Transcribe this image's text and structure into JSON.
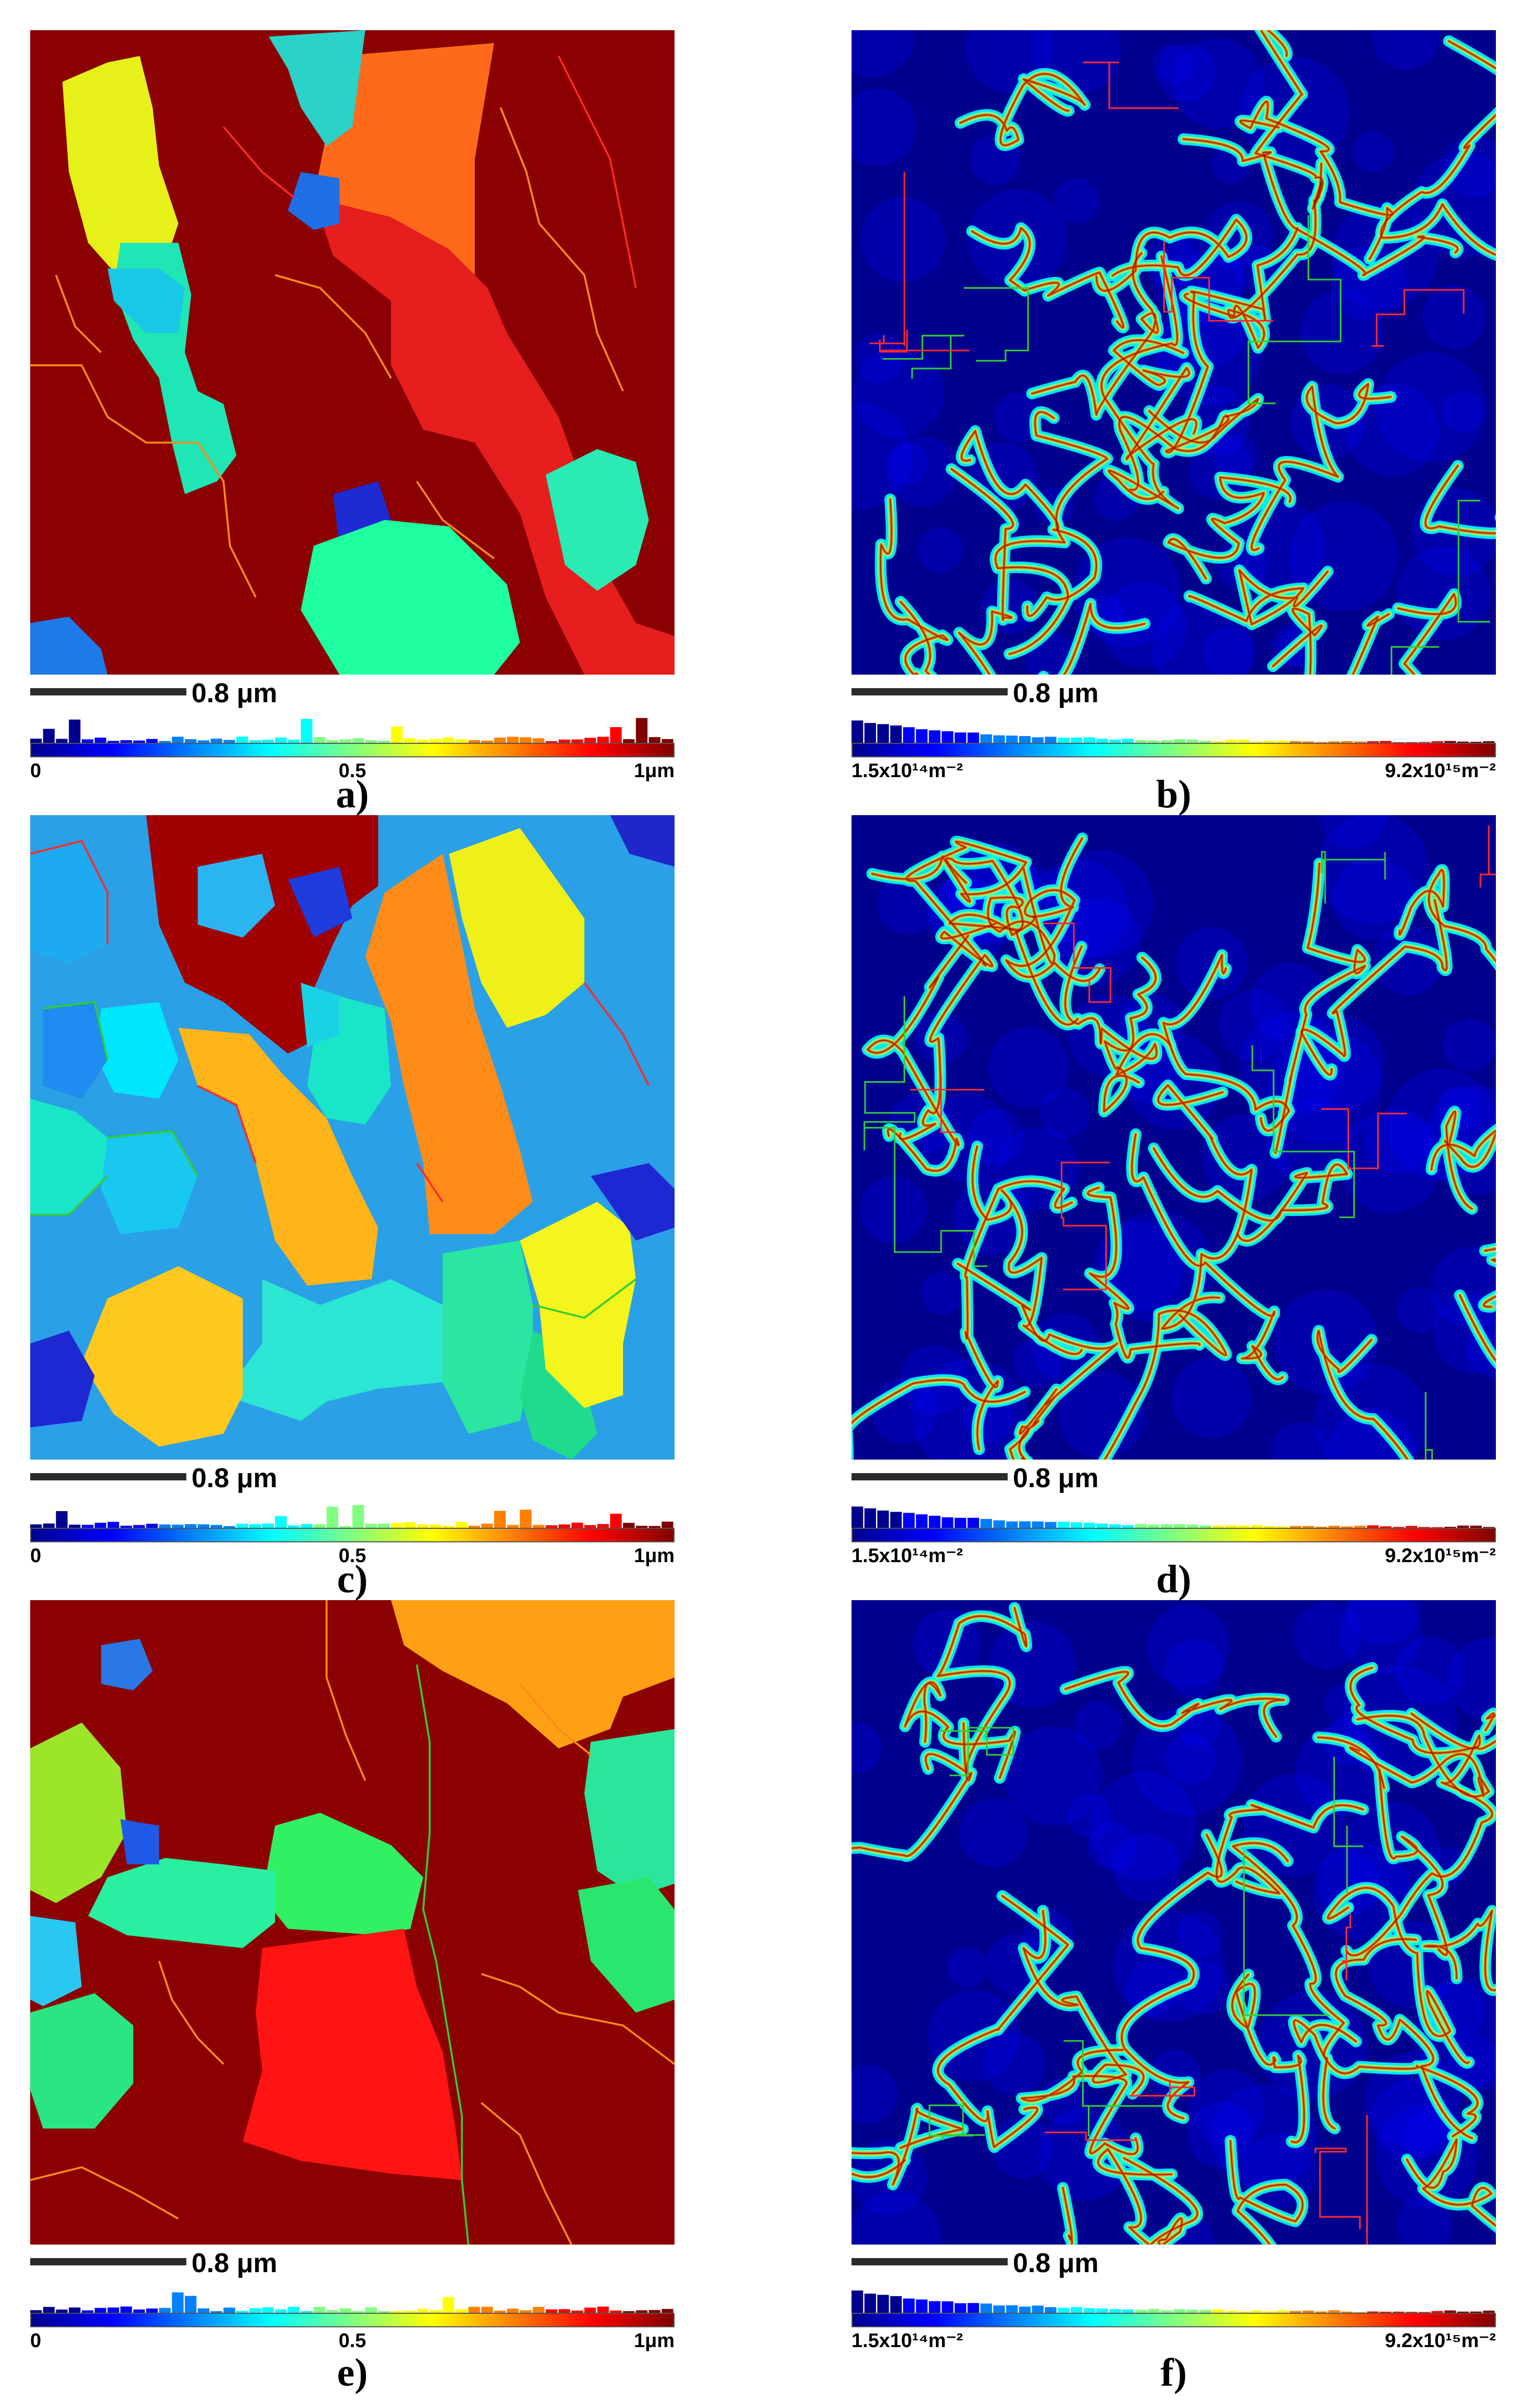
{
  "colors": {
    "jet_scale": [
      "#00008f",
      "#0000ff",
      "#0080ff",
      "#00ffff",
      "#80ff80",
      "#ffff00",
      "#ff8000",
      "#ff0000",
      "#800000"
    ],
    "scalebar": "#2b2b2b",
    "boundary_red": "#ff2a2a",
    "boundary_green": "#33cc33",
    "boundary_orange": "#ff8a1a"
  },
  "panels": [
    {
      "id": "a",
      "caption": "a)",
      "kind": "grain-size-map",
      "scalebar_label": "0.8 μm",
      "colorbar": {
        "min_label": "0",
        "mid_label": "0.5",
        "max_label": "1μm"
      },
      "background": "#8b0000",
      "grains": [
        {
          "color": "#e6f019"
        },
        {
          "color": "#1ee6b4"
        },
        {
          "color": "#ff6a1a"
        },
        {
          "color": "#19c8e6"
        },
        {
          "color": "#2ad2c8"
        },
        {
          "color": "#e61e1e"
        },
        {
          "color": "#1e6ee6"
        },
        {
          "color": "#1e2ad2"
        },
        {
          "color": "#1effa0"
        },
        {
          "color": "#2aebb4"
        },
        {
          "color": "#1e7ae6"
        }
      ]
    },
    {
      "id": "b",
      "caption": "b)",
      "kind": "dislocation-density-map",
      "scalebar_label": "0.8 μm",
      "colorbar": {
        "min_label": "1.5x10¹⁴m⁻²",
        "max_label": "9.2x10¹⁵m⁻²"
      }
    },
    {
      "id": "c",
      "caption": "c)",
      "kind": "grain-size-map",
      "scalebar_label": "0.8 μm",
      "colorbar": {
        "min_label": "0",
        "mid_label": "0.5",
        "max_label": "1μm"
      },
      "background": "#2aa0e6",
      "grains": [
        {
          "color": "#a00000"
        },
        {
          "color": "#ff8c19"
        },
        {
          "color": "#f0f019"
        },
        {
          "color": "#19e6c8"
        },
        {
          "color": "#ffb41a"
        },
        {
          "color": "#2ae6d2"
        },
        {
          "color": "#19e6c8"
        },
        {
          "color": "#ffc81e"
        },
        {
          "color": "#2ae6a0"
        },
        {
          "color": "#1edc8c"
        },
        {
          "color": "#f5f51e"
        },
        {
          "color": "#19d2e6"
        },
        {
          "color": "#1eaaf0"
        },
        {
          "color": "#00e6ff"
        },
        {
          "color": "#1e8cf0"
        },
        {
          "color": "#19c8f0"
        },
        {
          "color": "#1e28d2"
        },
        {
          "color": "#1e28d2"
        },
        {
          "color": "#2ab4f0"
        },
        {
          "color": "#1e28c8"
        },
        {
          "color": "#1e3cdc"
        }
      ]
    },
    {
      "id": "d",
      "caption": "d)",
      "kind": "dislocation-density-map",
      "scalebar_label": "0.8 μm",
      "colorbar": {
        "min_label": "1.5x10¹⁴m⁻²",
        "max_label": "9.2x10¹⁵m⁻²"
      }
    },
    {
      "id": "e",
      "caption": "e)",
      "kind": "grain-size-map",
      "scalebar_label": "0.8 μm",
      "colorbar": {
        "min_label": "0",
        "mid_label": "0.5",
        "max_label": "1μm"
      },
      "background": "#8b0000",
      "grains": [
        {
          "color": "#ffa014"
        },
        {
          "color": "#2ae69b"
        },
        {
          "color": "#9be628"
        },
        {
          "color": "#2ae682"
        },
        {
          "color": "#32f064"
        },
        {
          "color": "#28f0a0"
        },
        {
          "color": "#28c8f0"
        },
        {
          "color": "#2ae66e"
        },
        {
          "color": "#ff1414"
        },
        {
          "color": "#2a78e6"
        },
        {
          "color": "#1e5ae6"
        }
      ]
    },
    {
      "id": "f",
      "caption": "f)",
      "kind": "dislocation-density-map",
      "scalebar_label": "0.8 μm",
      "colorbar": {
        "min_label": "1.5x10¹⁴m⁻²",
        "max_label": "9.2x10¹⁵m⁻²"
      }
    }
  ]
}
